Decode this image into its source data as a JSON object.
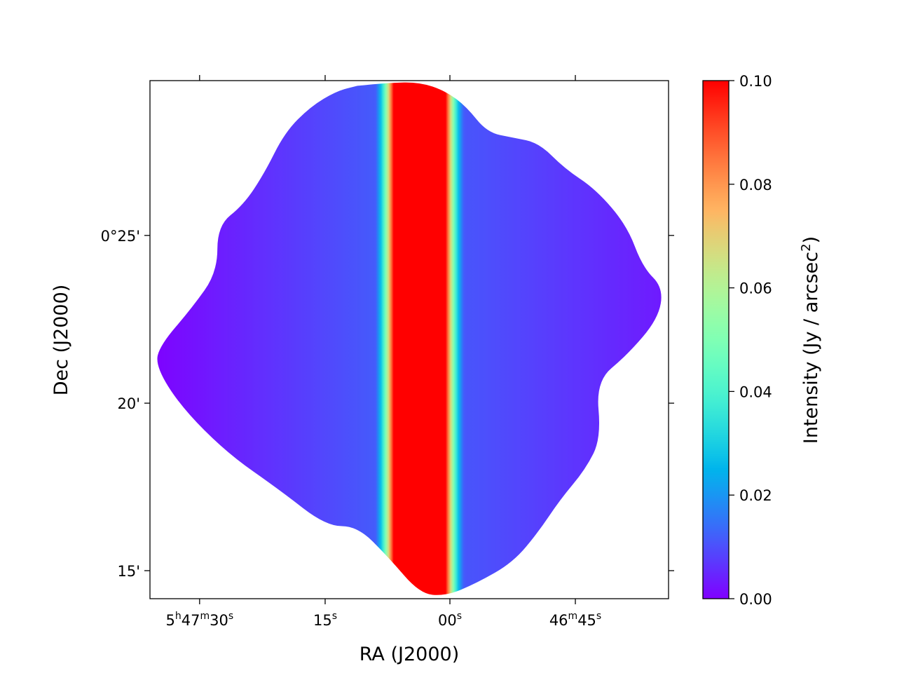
{
  "chart_data": {
    "type": "heatmap",
    "title": "",
    "xlabel": "RA (J2000)",
    "ylabel": "Dec (J2000)",
    "x_ticks": [
      {
        "label": "5h47m30s",
        "parts": [
          {
            "t": "5"
          },
          {
            "t": "h",
            "sup": true
          },
          {
            "t": "47"
          },
          {
            "t": "m",
            "sup": true
          },
          {
            "t": "30"
          },
          {
            "t": "s",
            "sup": true
          }
        ],
        "frac": 0.0957
      },
      {
        "label": "15s",
        "parts": [
          {
            "t": "15"
          },
          {
            "t": "s",
            "sup": true
          }
        ],
        "frac": 0.3378
      },
      {
        "label": "00s",
        "parts": [
          {
            "t": "00"
          },
          {
            "t": "s",
            "sup": true
          }
        ],
        "frac": 0.5784
      },
      {
        "label": "46m45s",
        "parts": [
          {
            "t": "46"
          },
          {
            "t": "m",
            "sup": true
          },
          {
            "t": "45"
          },
          {
            "t": "s",
            "sup": true
          }
        ],
        "frac": 0.8203
      }
    ],
    "y_ticks": [
      {
        "label": "0°25'",
        "frac": 0.7012
      },
      {
        "label": "20'",
        "frac": 0.3774
      },
      {
        "label": "15'",
        "frac": 0.0541
      }
    ],
    "colorbar": {
      "label": "Intensity (Jy / arcsec2)",
      "label_main": "Intensity (Jy / arcsec",
      "label_sup": "2",
      "label_end": ")",
      "vmin": 0.0,
      "vmax": 0.1,
      "ticks": [
        "0.00",
        "0.02",
        "0.04",
        "0.06",
        "0.08",
        "0.10"
      ],
      "colormap": "rainbow"
    },
    "map": {
      "description_free": true,
      "profile": "vertical band peaking near RA ~5h47m05s, saturated (>=0.10) over a narrow strip, falling to ~0.01 on both sides",
      "peak_frac_x": 0.52,
      "core_halfwidth_frac": 0.03,
      "gauss_sigma_frac": 0.035,
      "left_edge_value": 0.0,
      "right_edge_value": 0.003,
      "plateau_value_left": 0.012,
      "plateau_value_right": 0.012,
      "tilt": 0.04
    }
  }
}
